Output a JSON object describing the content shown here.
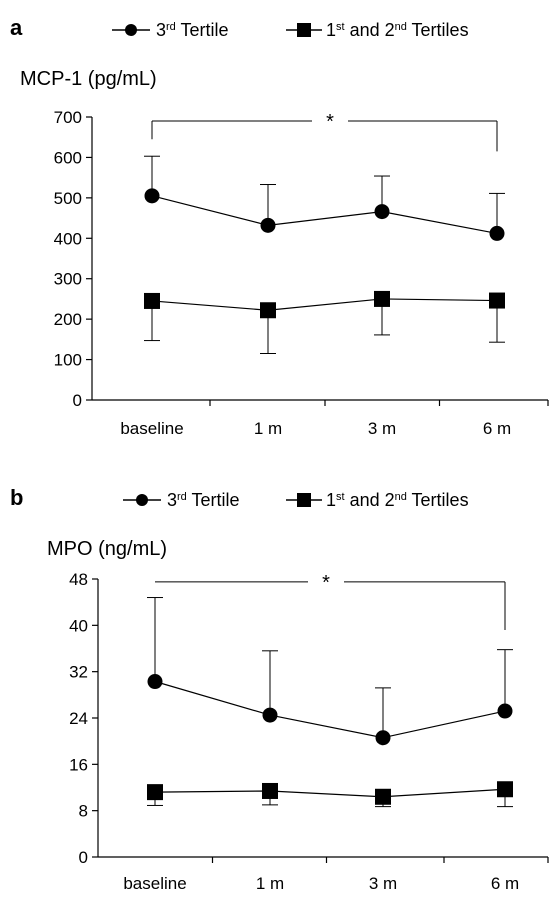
{
  "chart_data": [
    {
      "type": "line",
      "panel": "a",
      "ylabel": "MCP-1 (pg/mL)",
      "categories": [
        "baseline",
        "1 m",
        "3 m",
        "6 m"
      ],
      "yticks": [
        "0",
        "100",
        "200",
        "300",
        "400",
        "500",
        "600",
        "700"
      ],
      "ylim": [
        0,
        700
      ],
      "series": [
        {
          "name_parts": [
            "3",
            "rd",
            " Tertile"
          ],
          "marker": "circle",
          "values": [
            505,
            432,
            466,
            412
          ],
          "error_upper": [
            603,
            533,
            554,
            511
          ]
        },
        {
          "name_parts": [
            "1",
            "st",
            " and 2",
            "nd",
            " Tertiles"
          ],
          "marker": "square",
          "values": [
            245,
            222,
            250,
            246
          ],
          "error_lower": [
            147,
            115,
            161,
            143
          ]
        }
      ],
      "significance": {
        "label": "*",
        "from": "baseline",
        "to": "6 m",
        "bracket_y": 690,
        "left_drop_to": 645,
        "right_drop_to": 615
      }
    },
    {
      "type": "line",
      "panel": "b",
      "ylabel": "MPO (ng/mL)",
      "categories": [
        "baseline",
        "1 m",
        "3 m",
        "6 m"
      ],
      "yticks": [
        "0",
        "8",
        "16",
        "24",
        "32",
        "40",
        "48"
      ],
      "ylim": [
        0,
        48
      ],
      "series": [
        {
          "name_parts": [
            "3",
            "rd",
            " Tertile"
          ],
          "marker": "circle",
          "values": [
            30.3,
            24.5,
            20.6,
            25.2
          ],
          "error_upper": [
            44.8,
            35.6,
            29.2,
            35.8
          ]
        },
        {
          "name_parts": [
            "1",
            "st",
            " and 2",
            "nd",
            " Tertiles"
          ],
          "marker": "square",
          "values": [
            11.2,
            11.4,
            10.4,
            11.7
          ],
          "error_lower": [
            8.9,
            9.0,
            8.7,
            8.7
          ]
        }
      ],
      "significance": {
        "label": "*",
        "from": "baseline",
        "to": "6 m",
        "bracket_y": 47.5,
        "left_drop_to": null,
        "right_drop_to": 39.2
      }
    }
  ]
}
